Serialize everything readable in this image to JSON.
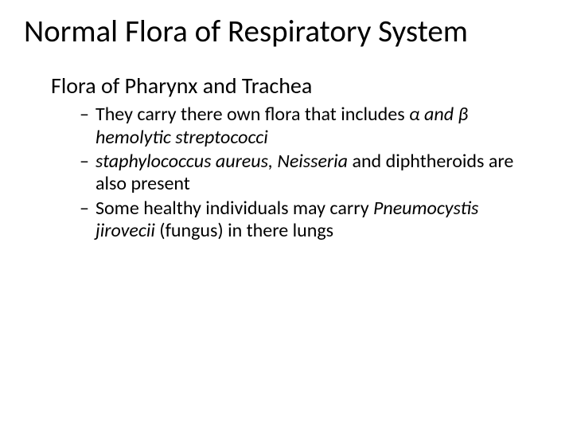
{
  "slide": {
    "title": "Normal Flora of Respiratory System",
    "subtitle": "Flora of Pharynx and Trachea",
    "bullets": [
      {
        "pre": "They carry there own flora that includes ",
        "italic": "α and β hemolytic streptococci",
        "post": ""
      },
      {
        "pre": "",
        "italic": "staphylococcus aureus, Neisseria",
        "post": " and diphtheroids are also present"
      },
      {
        "pre": "Some healthy individuals may carry ",
        "italic": "Pneumocystis jirovecii",
        "post": " (fungus) in there lungs"
      }
    ]
  },
  "style": {
    "background_color": "#ffffff",
    "text_color": "#000000",
    "title_fontsize": 39,
    "subtitle_fontsize": 28,
    "bullet_fontsize": 24,
    "bullet_marker": "–",
    "font_family": "Calibri"
  }
}
